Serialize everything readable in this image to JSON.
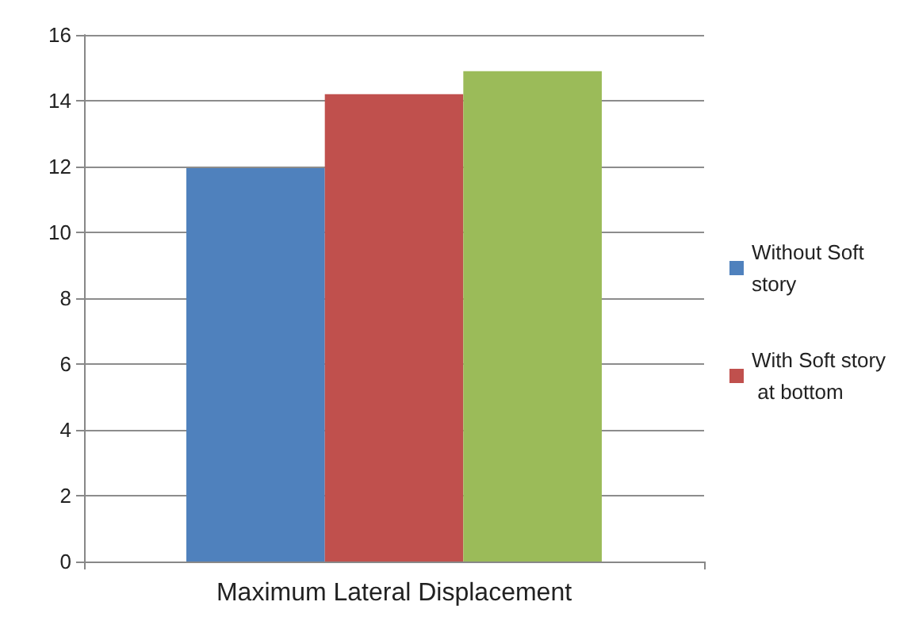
{
  "chart_data": {
    "type": "bar",
    "categories": [
      "Maximum Lateral Displacement"
    ],
    "series": [
      {
        "name": "Without Soft story",
        "color": "#4f81bd",
        "values": [
          11.95
        ]
      },
      {
        "name": "With Soft story at bottom",
        "color": "#c0504d",
        "values": [
          14.2
        ]
      },
      {
        "color": "#9bbb59",
        "values": [
          14.9
        ]
      }
    ],
    "ylim": [
      0,
      16
    ],
    "yticks": [
      0,
      2,
      4,
      6,
      8,
      10,
      12,
      14,
      16
    ],
    "grid": "y",
    "legend": "right"
  }
}
